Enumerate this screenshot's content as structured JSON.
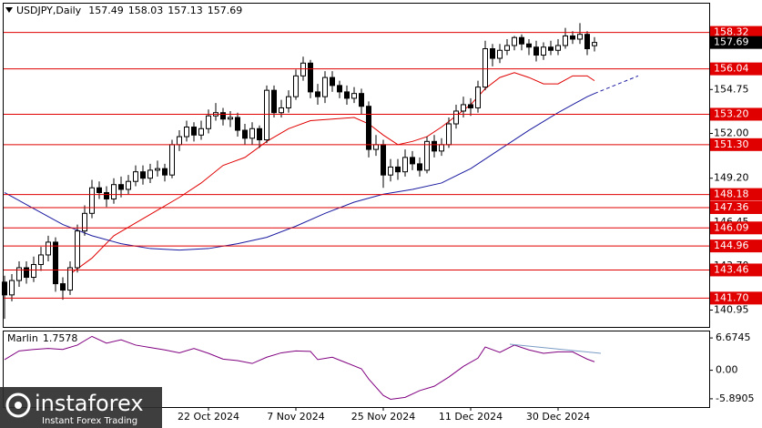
{
  "chart_data": [
    {
      "type": "candlestick",
      "title": "USDJPY,Daily",
      "open": [
        142.7,
        141.9,
        142.8,
        143.6,
        143.0,
        143.8,
        144.4,
        145.2,
        142.6,
        142.2,
        143.6,
        145.9,
        147.0,
        148.6,
        148.3,
        147.9,
        148.8,
        148.5,
        149.0,
        149.6,
        149.2,
        149.7,
        149.8,
        149.4,
        151.3,
        151.8,
        152.4,
        151.9,
        152.3,
        153.1,
        153.3,
        152.9,
        153.0,
        152.2,
        151.7,
        152.3,
        151.6,
        154.7,
        153.3,
        153.6,
        154.3,
        155.6,
        156.4,
        154.6,
        154.3,
        155.5,
        155.0,
        154.6,
        154.2,
        154.5,
        153.7,
        151.0,
        151.3,
        149.4,
        149.9,
        149.6,
        150.5,
        150.1,
        149.7,
        151.5,
        150.9,
        151.3,
        152.6,
        153.4,
        153.8,
        153.6,
        154.9,
        157.3,
        156.7,
        157.2,
        157.5,
        158.0,
        157.6,
        157.4,
        156.9,
        157.4,
        157.2,
        157.5,
        158.1,
        157.9,
        158.2,
        157.49
      ],
      "high": [
        143.1,
        143.2,
        144.0,
        144.0,
        144.3,
        144.9,
        145.6,
        145.5,
        143.0,
        144.0,
        146.3,
        147.5,
        149.1,
        149.0,
        148.7,
        149.2,
        149.3,
        149.4,
        150.0,
        150.0,
        150.1,
        150.3,
        150.1,
        151.6,
        152.2,
        152.8,
        152.7,
        152.8,
        153.5,
        153.9,
        153.6,
        153.4,
        153.3,
        152.6,
        152.7,
        152.5,
        155.0,
        155.0,
        154.1,
        154.7,
        156.0,
        156.8,
        156.6,
        155.1,
        155.9,
        155.9,
        155.3,
        155.0,
        154.9,
        154.8,
        154.0,
        151.9,
        151.6,
        150.4,
        150.4,
        151.0,
        150.9,
        150.5,
        151.8,
        151.9,
        151.7,
        153.0,
        153.8,
        154.3,
        154.2,
        155.3,
        157.8,
        157.6,
        157.6,
        157.9,
        158.1,
        158.2,
        157.9,
        157.8,
        157.7,
        157.8,
        157.9,
        158.6,
        158.4,
        158.9,
        158.4,
        158.03
      ],
      "low": [
        140.4,
        141.5,
        142.4,
        142.6,
        142.7,
        143.4,
        144.0,
        142.1,
        141.6,
        141.9,
        143.3,
        145.6,
        146.7,
        147.9,
        147.4,
        147.6,
        148.0,
        148.2,
        148.7,
        148.8,
        148.9,
        149.3,
        149.0,
        149.2,
        150.9,
        151.5,
        151.5,
        151.6,
        152.0,
        152.8,
        152.5,
        152.4,
        151.8,
        151.3,
        151.3,
        151.1,
        151.4,
        153.0,
        153.0,
        153.3,
        154.1,
        155.3,
        154.2,
        153.8,
        153.9,
        154.6,
        154.2,
        153.8,
        153.9,
        153.2,
        150.5,
        150.6,
        148.6,
        149.0,
        149.1,
        149.3,
        149.7,
        149.3,
        149.5,
        150.5,
        150.6,
        151.1,
        152.3,
        153.0,
        153.1,
        153.3,
        154.7,
        156.2,
        156.4,
        156.9,
        157.2,
        157.2,
        156.9,
        156.5,
        156.6,
        156.9,
        156.9,
        157.3,
        157.6,
        157.6,
        156.9,
        157.13
      ],
      "close": [
        141.9,
        142.8,
        143.6,
        143.0,
        143.8,
        144.4,
        145.2,
        142.6,
        142.2,
        143.6,
        145.9,
        147.0,
        148.6,
        148.3,
        147.9,
        148.8,
        148.5,
        149.0,
        149.6,
        149.2,
        149.7,
        149.8,
        149.4,
        151.3,
        151.8,
        152.4,
        151.9,
        152.3,
        153.1,
        153.3,
        152.9,
        153.0,
        152.2,
        151.7,
        152.3,
        151.6,
        154.7,
        153.3,
        153.6,
        154.3,
        155.6,
        156.4,
        154.6,
        154.3,
        155.5,
        155.0,
        154.6,
        154.2,
        154.5,
        153.7,
        151.0,
        151.3,
        149.4,
        149.9,
        149.6,
        150.5,
        150.1,
        149.7,
        151.5,
        150.9,
        151.3,
        152.6,
        153.4,
        153.8,
        153.6,
        154.9,
        157.3,
        156.7,
        157.2,
        157.5,
        158.0,
        157.6,
        157.4,
        156.9,
        157.4,
        157.2,
        157.5,
        158.1,
        157.9,
        158.2,
        157.3,
        157.69
      ],
      "lines": [
        {
          "color": "#e00000",
          "x": [
            9,
            12,
            15,
            18,
            21,
            24,
            27,
            30,
            33,
            36,
            39,
            42,
            45,
            48,
            50,
            52,
            54,
            56,
            58,
            60,
            62,
            64,
            66,
            68,
            70,
            72,
            74,
            76,
            78,
            80,
            81
          ],
          "values": [
            143.2,
            144.2,
            145.6,
            146.4,
            147.2,
            148.0,
            148.9,
            150.0,
            150.5,
            151.5,
            152.3,
            152.8,
            152.9,
            153.0,
            152.6,
            151.9,
            151.3,
            151.5,
            151.8,
            152.4,
            153.1,
            153.8,
            154.8,
            155.5,
            155.8,
            155.5,
            155.1,
            155.1,
            155.6,
            155.6,
            155.3
          ]
        },
        {
          "color": "#1a1aa0",
          "x": [
            0,
            4,
            8,
            12,
            16,
            20,
            24,
            28,
            32,
            36,
            40,
            44,
            48,
            52,
            56,
            60,
            64,
            68,
            72,
            76,
            80,
            81
          ],
          "values": [
            148.3,
            147.3,
            146.3,
            145.6,
            145.1,
            144.8,
            144.7,
            144.8,
            145.1,
            145.5,
            146.2,
            147.0,
            147.7,
            148.2,
            148.5,
            148.9,
            149.8,
            151.0,
            152.2,
            153.3,
            154.3,
            154.5
          ]
        },
        {
          "color": "#1a1aa0",
          "style": "dashed",
          "x": [
            81,
            87
          ],
          "values": [
            154.5,
            155.6
          ]
        }
      ],
      "ylim": [
        139.84,
        160.12
      ],
      "yticks": [
        154.75,
        {
          "value": 152,
          "label": "152.00"
        },
        {
          "value": 149.2,
          "label": "149.20"
        },
        146.45,
        {
          "value": 143.7,
          "label": "143.70"
        },
        140.95
      ],
      "levels": [
        158.32,
        156.04,
        {
          "value": 153.2,
          "label": "153.20"
        },
        {
          "value": 151.3,
          "label": "151.30"
        },
        148.18,
        147.36,
        146.09,
        144.96,
        143.46,
        {
          "value": 141.7,
          "label": "141.70"
        }
      ],
      "level_color": "#e00000"
    },
    {
      "type": "line",
      "title": "Marlin",
      "color": "#800080",
      "x": [
        0,
        2,
        4,
        6,
        8,
        10,
        12,
        14,
        16,
        18,
        20,
        22,
        24,
        26,
        28,
        30,
        32,
        34,
        36,
        38,
        40,
        42,
        43,
        45,
        47,
        49,
        50,
        52,
        53,
        55,
        57,
        59,
        61,
        63,
        65,
        66,
        68,
        70,
        72,
        74,
        76,
        78,
        80,
        81
      ],
      "values": [
        2.2,
        4.0,
        4.3,
        4.5,
        4.3,
        5.2,
        7.0,
        5.6,
        6.3,
        5.2,
        4.7,
        4.2,
        3.6,
        4.5,
        3.5,
        2.3,
        2.0,
        1.4,
        2.7,
        3.6,
        4.0,
        3.9,
        2.2,
        2.7,
        1.5,
        0.3,
        -1.8,
        -5.2,
        -6.0,
        -5.6,
        -4.2,
        -3.3,
        -1.4,
        0.8,
        2.5,
        4.8,
        3.7,
        5.2,
        4.2,
        3.5,
        3.8,
        3.8,
        2.3,
        1.7578
      ],
      "ylim": [
        -7.6,
        8.2
      ],
      "yticks": [
        6.6745,
        {
          "value": 0,
          "label": "0.00"
        },
        -5.8905
      ],
      "xticks": [
        {
          "value": 28,
          "label": "22 Oct 2024"
        },
        {
          "value": 40,
          "label": "7 Nov 2024"
        },
        {
          "value": 52,
          "label": "25 Nov 2024"
        },
        {
          "value": 64,
          "label": "11 Dec 2024"
        },
        {
          "value": 76,
          "label": "30 Dec 2024"
        }
      ]
    }
  ],
  "logo": {
    "name": "instaforex",
    "tagline": "Instant Forex Trading"
  }
}
